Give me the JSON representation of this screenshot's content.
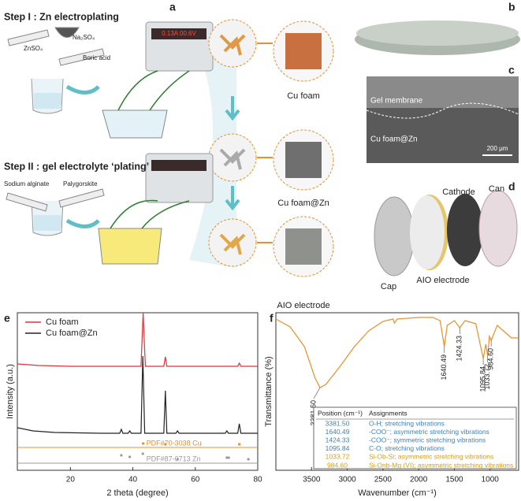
{
  "panel_labels": [
    "a",
    "b",
    "c",
    "d",
    "e",
    "f"
  ],
  "schematic": {
    "step1": {
      "title": "Step I : Zn electroplating",
      "reagents": [
        "ZnSO₄",
        "Na₂SO₄",
        "Boric acid"
      ],
      "display": "0.13A 00.6V",
      "product": "Cu foam"
    },
    "step2": {
      "title": "Step II : gel electrolyte ‘plating’",
      "reagents": [
        "Sodium alginate",
        "Palygorskite"
      ],
      "products": [
        "Cu foam@Zn",
        "AIO electrode"
      ]
    }
  },
  "sem": {
    "labels": [
      "Gel membrane",
      "Cu foam@Zn"
    ],
    "scale_bar": "200 μm"
  },
  "cell": {
    "parts": [
      "Cap",
      "AIO electrode",
      "Cathode",
      "Can"
    ]
  },
  "chart_data": [
    {
      "type": "line",
      "xlabel": "2 theta (degree)",
      "ylabel": "Intensity (a.u.)",
      "xlim": [
        3,
        80
      ],
      "xticks": [
        20,
        40,
        60,
        80
      ],
      "ylim": [
        0,
        100
      ],
      "legend": "upper left",
      "series": [
        {
          "name": "Cu foam",
          "color": "#d9363e",
          "x": [
            3,
            10,
            20,
            30,
            40,
            42.6,
            43.3,
            44.0,
            49.9,
            50.4,
            50.9,
            73.6,
            74.1,
            74.6,
            80
          ],
          "values": [
            67.5,
            66.5,
            66,
            66,
            66,
            66,
            100,
            66,
            66,
            72,
            66,
            66,
            68,
            66,
            66
          ]
        },
        {
          "name": "Cu foam@Zn",
          "color": "#222222",
          "x": [
            3,
            8,
            15,
            30,
            35.8,
            36.3,
            36.8,
            38.5,
            39.0,
            39.5,
            42.6,
            43.2,
            43.8,
            49.9,
            50.4,
            50.9,
            53.8,
            54.3,
            54.8,
            69.6,
            70.1,
            70.6,
            73.6,
            74.1,
            74.6,
            80
          ],
          "values": [
            27,
            25,
            24,
            23.5,
            23.5,
            26,
            23.5,
            23.5,
            25,
            23.5,
            23.5,
            72.5,
            23.5,
            23.5,
            50.5,
            23.5,
            23.5,
            25,
            23.5,
            23.5,
            25,
            23.5,
            23.5,
            29.5,
            23.5,
            23.5
          ]
        }
      ],
      "references": [
        {
          "name": "PDF#70-3038 Cu",
          "color": "#e8902a",
          "level": 14.5,
          "x": [
            43.3,
            50.4,
            74.1
          ],
          "values": [
            17,
            16.5,
            16.5
          ]
        },
        {
          "name": "PDF#87-0713 Zn",
          "color": "#9a9a9a",
          "level": 4.5,
          "x": [
            36.3,
            39.0,
            43.2,
            54.3,
            70.1,
            70.7,
            77.0
          ],
          "values": [
            9.5,
            8.5,
            10.5,
            7,
            8,
            8,
            7
          ]
        }
      ]
    },
    {
      "type": "line",
      "xlabel": "Wavenumber (cm⁻¹)",
      "ylabel": "Transmittance (%)",
      "xlim": [
        4000,
        600
      ],
      "xticks": [
        3500,
        3000,
        2500,
        2000,
        1500,
        1000
      ],
      "ylim": [
        0,
        100
      ],
      "series": [
        {
          "color": "#e8902a",
          "x": [
            4000,
            3800,
            3600,
            3450,
            3381.5,
            3300,
            3100,
            2900,
            2700,
            2500,
            2360,
            2340,
            2300,
            2000,
            1800,
            1700,
            1640.49,
            1600,
            1500,
            1424.33,
            1350,
            1200,
            1095.84,
            1060,
            1033.72,
            1010,
            984.6,
            900,
            800,
            700,
            600
          ],
          "values": [
            96,
            91,
            78.5,
            58.5,
            52.5,
            54.5,
            66,
            78.5,
            88.5,
            94.5,
            96,
            93.5,
            96,
            97,
            97,
            95,
            78.5,
            92,
            95,
            90.5,
            95,
            93,
            71,
            80,
            72.5,
            85,
            82.5,
            92,
            88,
            84,
            84
          ]
        }
      ],
      "peaks": {
        "x": [
          3381.5,
          1640.49,
          1424.33,
          1095.84,
          1033.72,
          984.6
        ],
        "values": [
          52.5,
          78.5,
          90.5,
          71,
          72.5,
          82.5
        ],
        "labels": [
          "3381.50",
          "1640.49",
          "1424.33",
          "1095.84",
          "1033.72",
          "984.60"
        ]
      },
      "table": {
        "header": [
          "Position (cm⁻¹)",
          "Assignments"
        ],
        "rows": [
          [
            "3381.50",
            "O-H; stretching vibrations"
          ],
          [
            "1640.49",
            "-COO⁻; asymmetric stretching vibrations"
          ],
          [
            "1424.33",
            "-COO⁻; symmetric stretching vibrations"
          ],
          [
            "1095.84",
            "C-O; stretching vibrations"
          ],
          [
            "1033.72",
            "Si-Ob-Si; asymmetric stretching vibrations"
          ],
          [
            "984.60",
            "Si-Onb-Mg (VI); asymmetric stretching vibrations"
          ]
        ],
        "row_colors": [
          "#3f7fbf",
          "#3f7fbf",
          "#3f7fbf",
          "#3f7fbf",
          "#d4a017",
          "#d4a017"
        ]
      }
    }
  ]
}
